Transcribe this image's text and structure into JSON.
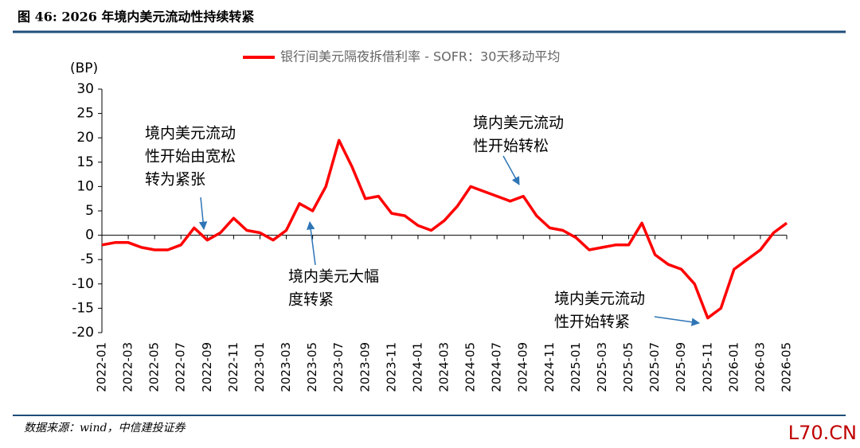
{
  "chart_data": {
    "type": "line",
    "title": "图 46: 2026 年境内美元流动性持续转紧",
    "y_label": "(BP)",
    "categories": [
      "2022-01",
      null,
      "2022-03",
      null,
      "2022-05",
      null,
      "2022-07",
      null,
      "2022-09",
      null,
      "2022-11",
      null,
      "2023-01",
      null,
      "2023-03",
      null,
      "2023-05",
      null,
      "2023-07",
      null,
      "2023-09",
      null,
      "2023-11",
      null,
      "2024-01",
      null,
      "2024-03",
      null,
      "2024-05",
      null,
      "2024-07",
      null,
      "2024-09",
      null,
      "2024-11",
      null,
      "2025-01",
      null,
      "2025-03",
      null,
      "2025-05",
      null,
      "2025-07",
      null,
      "2025-09",
      null,
      "2025-11",
      null,
      "2026-01",
      null,
      "2026-03",
      null,
      "2026-05"
    ],
    "series": [
      {
        "name": "银行间美元隔夜拆借利率 - SOFR：30天移动平均",
        "color": "#ff0000",
        "values": [
          -2,
          -1.5,
          -1.5,
          -2.5,
          -3,
          -3,
          -2,
          1.5,
          -1,
          0.5,
          3.5,
          1,
          0.5,
          -1,
          1,
          6.5,
          5,
          10,
          19.5,
          14,
          7.5,
          8,
          4.5,
          4,
          2,
          1,
          3,
          6,
          10,
          9,
          8,
          7,
          8,
          4,
          1.5,
          1,
          -0.5,
          -3,
          -2.5,
          -2,
          -2,
          2.5,
          -4,
          -6,
          -7,
          -10,
          -17,
          -15,
          -7,
          -5,
          -3,
          0.5,
          2.5
        ]
      }
    ],
    "ylim": [
      -20,
      30
    ],
    "yticks": [
      -20,
      -15,
      -10,
      -5,
      0,
      5,
      10,
      15,
      20,
      25,
      30
    ],
    "annotations": [
      {
        "lines": [
          "境内美元流动",
          "性开始由宽松",
          "转为紧张"
        ]
      },
      {
        "lines": [
          "境内美元大幅",
          "度转紧"
        ]
      },
      {
        "lines": [
          "境内美元流动",
          "性开始转松"
        ]
      },
      {
        "lines": [
          "境内美元流动",
          "性开始转紧"
        ]
      }
    ],
    "source": "数据来源：wind，中信建投证券",
    "watermark": "L70.CN"
  }
}
